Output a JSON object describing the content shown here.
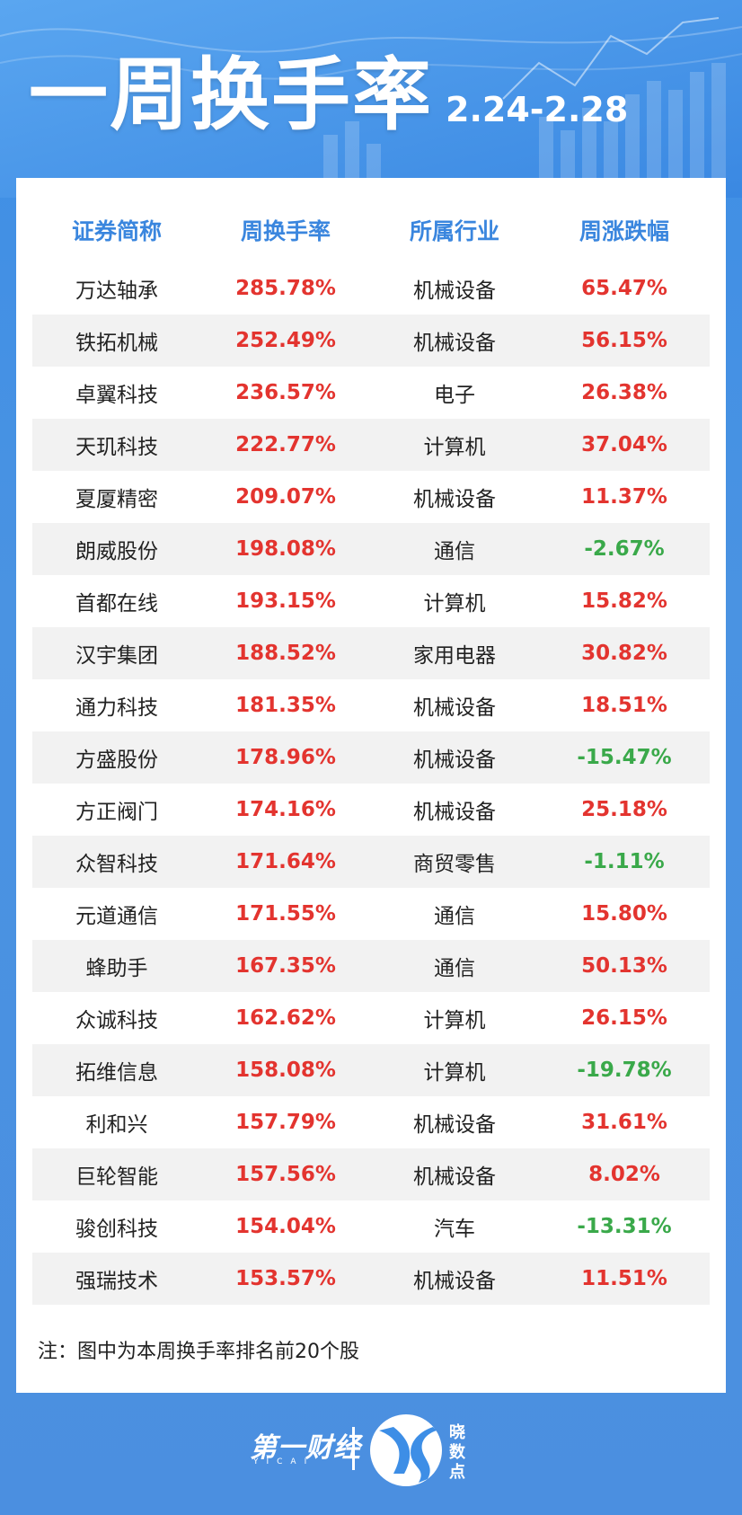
{
  "header": {
    "title": "一周换手率",
    "date_range": "2.24-2.28"
  },
  "table": {
    "columns": [
      "证券简称",
      "周换手率",
      "所属行业",
      "周涨跌幅"
    ],
    "rows": [
      {
        "name": "万达轴承",
        "rate": "285.78%",
        "industry": "机械设备",
        "change": "65.47%",
        "dir": "up"
      },
      {
        "name": "铁拓机械",
        "rate": "252.49%",
        "industry": "机械设备",
        "change": "56.15%",
        "dir": "up"
      },
      {
        "name": "卓翼科技",
        "rate": "236.57%",
        "industry": "电子",
        "change": "26.38%",
        "dir": "up"
      },
      {
        "name": "天玑科技",
        "rate": "222.77%",
        "industry": "计算机",
        "change": "37.04%",
        "dir": "up"
      },
      {
        "name": "夏厦精密",
        "rate": "209.07%",
        "industry": "机械设备",
        "change": "11.37%",
        "dir": "up"
      },
      {
        "name": "朗威股份",
        "rate": "198.08%",
        "industry": "通信",
        "change": "-2.67%",
        "dir": "down"
      },
      {
        "name": "首都在线",
        "rate": "193.15%",
        "industry": "计算机",
        "change": "15.82%",
        "dir": "up"
      },
      {
        "name": "汉宇集团",
        "rate": "188.52%",
        "industry": "家用电器",
        "change": "30.82%",
        "dir": "up"
      },
      {
        "name": "通力科技",
        "rate": "181.35%",
        "industry": "机械设备",
        "change": "18.51%",
        "dir": "up"
      },
      {
        "name": "方盛股份",
        "rate": "178.96%",
        "industry": "机械设备",
        "change": "-15.47%",
        "dir": "down"
      },
      {
        "name": "方正阀门",
        "rate": "174.16%",
        "industry": "机械设备",
        "change": "25.18%",
        "dir": "up"
      },
      {
        "name": "众智科技",
        "rate": "171.64%",
        "industry": "商贸零售",
        "change": "-1.11%",
        "dir": "down"
      },
      {
        "name": "元道通信",
        "rate": "171.55%",
        "industry": "通信",
        "change": "15.80%",
        "dir": "up"
      },
      {
        "name": "蜂助手",
        "rate": "167.35%",
        "industry": "通信",
        "change": "50.13%",
        "dir": "up"
      },
      {
        "name": "众诚科技",
        "rate": "162.62%",
        "industry": "计算机",
        "change": "26.15%",
        "dir": "up"
      },
      {
        "name": "拓维信息",
        "rate": "158.08%",
        "industry": "计算机",
        "change": "-19.78%",
        "dir": "down"
      },
      {
        "name": "利和兴",
        "rate": "157.79%",
        "industry": "机械设备",
        "change": "31.61%",
        "dir": "up"
      },
      {
        "name": "巨轮智能",
        "rate": "157.56%",
        "industry": "机械设备",
        "change": "8.02%",
        "dir": "up"
      },
      {
        "name": "骏创科技",
        "rate": "154.04%",
        "industry": "汽车",
        "change": "-13.31%",
        "dir": "down"
      },
      {
        "name": "强瑞技术",
        "rate": "153.57%",
        "industry": "机械设备",
        "change": "11.51%",
        "dir": "up"
      }
    ]
  },
  "note": "注：图中为本周换手率排名前20个股",
  "footer": {
    "brand": "第一财经",
    "brand_sub": "YICAI",
    "badge_side": "晓数点"
  },
  "colors": {
    "primary_blue": "#3d8ee6",
    "header_text_blue": "#3a86de",
    "rise_red": "#e3342f",
    "fall_green": "#3aa94a"
  }
}
